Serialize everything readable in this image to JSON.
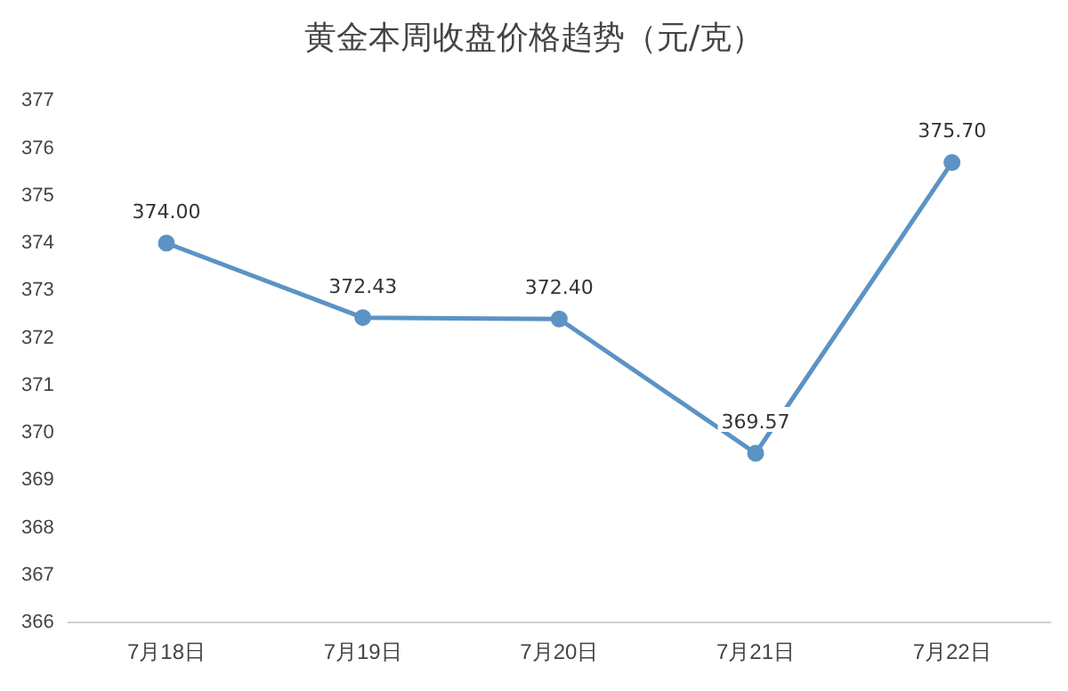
{
  "chart_data": {
    "type": "line",
    "title": "黄金本周收盘价格趋势（元/克）",
    "categories": [
      "7月18日",
      "7月19日",
      "7月20日",
      "7月21日",
      "7月22日"
    ],
    "series": [
      {
        "color": "#5b93c4",
        "values": [
          374.0,
          372.43,
          372.4,
          369.57,
          375.7
        ],
        "value_labels": [
          "374.00",
          "372.43",
          "372.40",
          "369.57",
          "375.70"
        ]
      }
    ],
    "ylim": [
      366,
      377
    ],
    "yticks": [
      366,
      367,
      368,
      369,
      370,
      371,
      372,
      373,
      374,
      375,
      376,
      377
    ],
    "grid": false,
    "legend": false,
    "marker": "circle",
    "line_style": "solid"
  }
}
